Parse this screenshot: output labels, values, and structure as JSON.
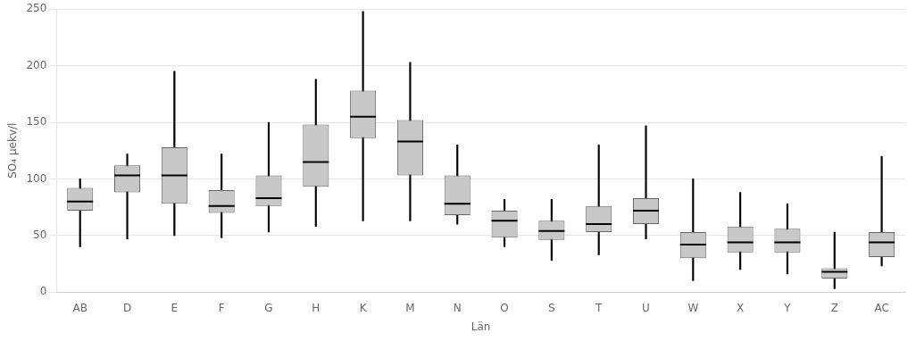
{
  "chart_data": {
    "type": "box",
    "xlabel": "Län",
    "ylabel": "SO₄ μekv/l",
    "categories": [
      "AB",
      "D",
      "E",
      "F",
      "G",
      "H",
      "K",
      "M",
      "N",
      "O",
      "S",
      "T",
      "U",
      "W",
      "X",
      "Y",
      "Z",
      "AC"
    ],
    "boxes": [
      {
        "whislo": 40,
        "q1": 72,
        "med": 80,
        "q3": 92,
        "whishi": 100
      },
      {
        "whislo": 47,
        "q1": 88,
        "med": 103,
        "q3": 112,
        "whishi": 122
      },
      {
        "whislo": 50,
        "q1": 78,
        "med": 103,
        "q3": 128,
        "whishi": 195
      },
      {
        "whislo": 48,
        "q1": 70,
        "med": 76,
        "q3": 90,
        "whishi": 122
      },
      {
        "whislo": 53,
        "q1": 76,
        "med": 83,
        "q3": 103,
        "whishi": 150
      },
      {
        "whislo": 58,
        "q1": 93,
        "med": 115,
        "q3": 148,
        "whishi": 188
      },
      {
        "whislo": 63,
        "q1": 136,
        "med": 155,
        "q3": 178,
        "whishi": 248
      },
      {
        "whislo": 63,
        "q1": 103,
        "med": 133,
        "q3": 152,
        "whishi": 203
      },
      {
        "whislo": 60,
        "q1": 68,
        "med": 78,
        "q3": 103,
        "whishi": 130
      },
      {
        "whislo": 40,
        "q1": 48,
        "med": 63,
        "q3": 72,
        "whishi": 82
      },
      {
        "whislo": 28,
        "q1": 46,
        "med": 54,
        "q3": 63,
        "whishi": 82
      },
      {
        "whislo": 33,
        "q1": 53,
        "med": 60,
        "q3": 76,
        "whishi": 130
      },
      {
        "whislo": 47,
        "q1": 60,
        "med": 72,
        "q3": 83,
        "whishi": 147
      },
      {
        "whislo": 10,
        "q1": 30,
        "med": 42,
        "q3": 53,
        "whishi": 100
      },
      {
        "whislo": 20,
        "q1": 35,
        "med": 44,
        "q3": 58,
        "whishi": 88
      },
      {
        "whislo": 16,
        "q1": 35,
        "med": 44,
        "q3": 56,
        "whishi": 78
      },
      {
        "whislo": 3,
        "q1": 12,
        "med": 18,
        "q3": 21,
        "whishi": 53
      },
      {
        "whislo": 23,
        "q1": 31,
        "med": 44,
        "q3": 53,
        "whishi": 120
      }
    ],
    "color": "#c8c8c8",
    "ylim": [
      0,
      250
    ],
    "yticks": [
      0,
      50,
      100,
      150,
      200,
      250
    ],
    "grid": true
  }
}
